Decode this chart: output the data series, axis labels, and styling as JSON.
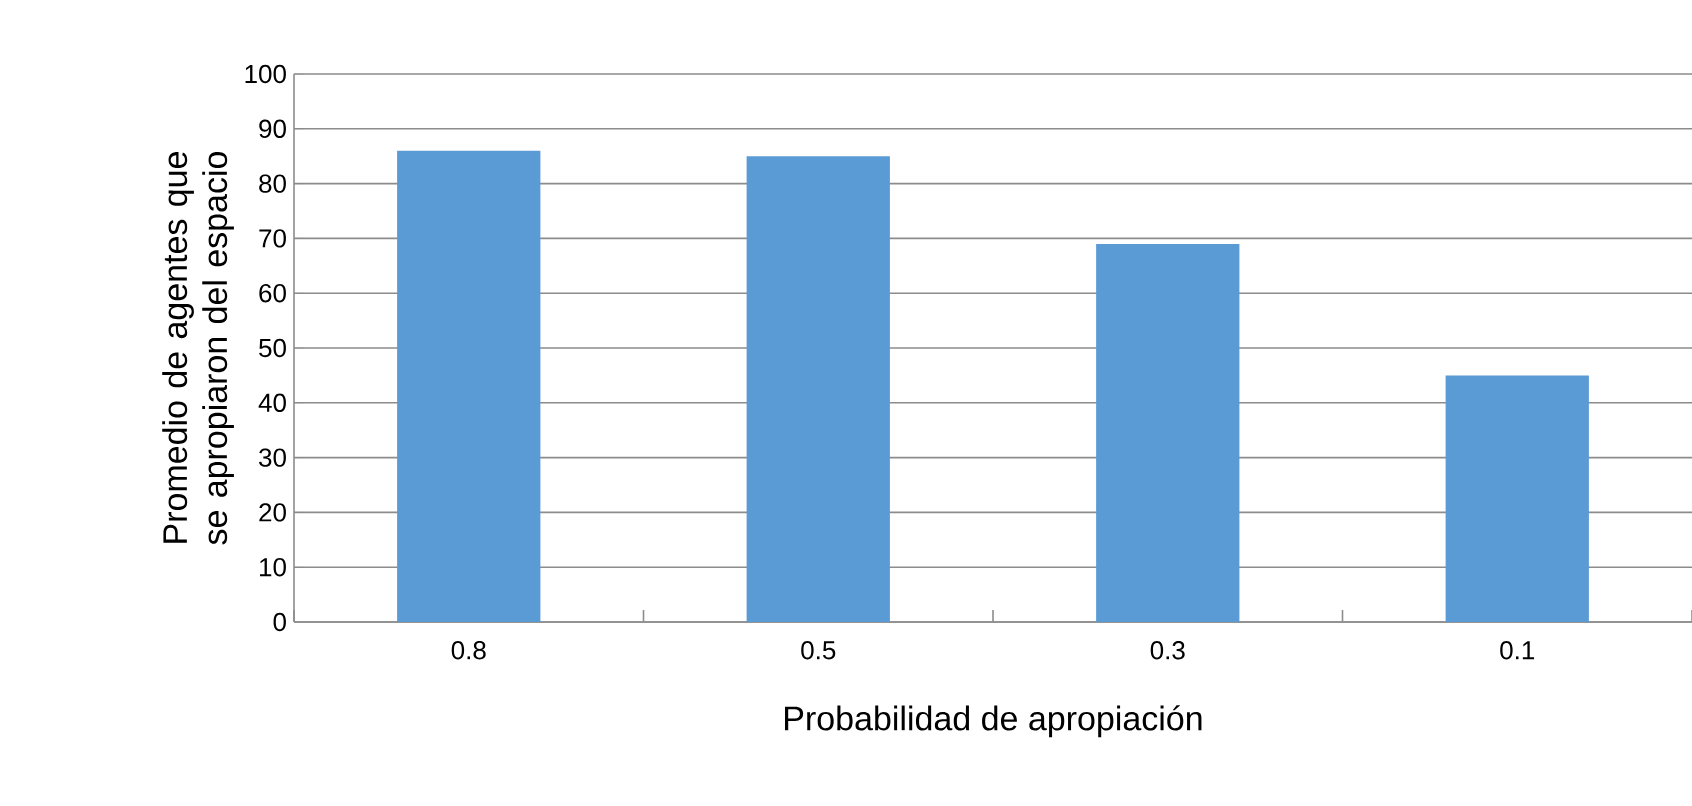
{
  "chart_data": {
    "type": "bar",
    "xlabel": "Probabilidad de apropiación",
    "ylabel": "Promedio de agentes que se apropiaron del espacio",
    "categories": [
      "0.8",
      "0.5",
      "0.3",
      "0.1"
    ],
    "values": [
      86,
      85,
      69,
      45
    ],
    "color": "#5b9bd5",
    "ylim": [
      0,
      100
    ],
    "yticks": [
      0,
      10,
      20,
      30,
      40,
      50,
      60,
      70,
      80,
      90,
      100
    ],
    "grid": "y"
  }
}
